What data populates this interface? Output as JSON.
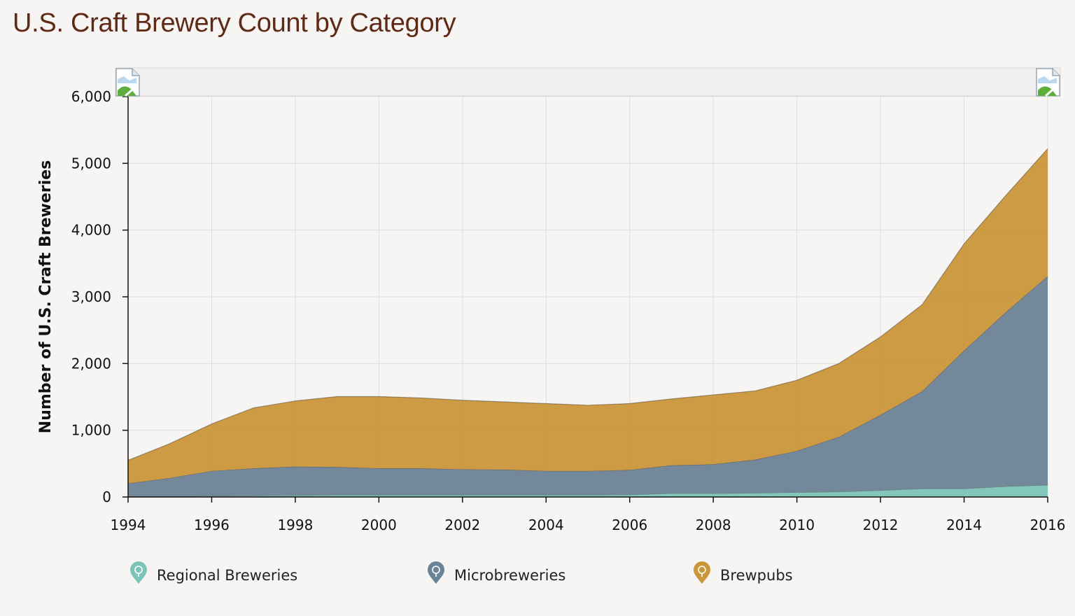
{
  "page_title": "U.S. Craft Brewery Count by Category",
  "chart_data": {
    "type": "area",
    "stacked": true,
    "title": "U.S. Craft Brewery Count by Category",
    "xlabel": "",
    "ylabel": "Number of U.S. Craft Breweries",
    "x": [
      1994,
      1995,
      1996,
      1997,
      1998,
      1999,
      2000,
      2001,
      2002,
      2003,
      2004,
      2005,
      2006,
      2007,
      2008,
      2009,
      2010,
      2011,
      2012,
      2013,
      2014,
      2015,
      2016
    ],
    "xlim": [
      1994,
      2016
    ],
    "ylim": [
      0,
      6000
    ],
    "x_ticks": [
      "1994",
      "1996",
      "1998",
      "2000",
      "2002",
      "2004",
      "2006",
      "2008",
      "2010",
      "2012",
      "2014",
      "2016"
    ],
    "y_ticks": [
      "0",
      "1,000",
      "2,000",
      "3,000",
      "4,000",
      "5,000",
      "6,000"
    ],
    "grid": true,
    "legend_position": "bottom",
    "series": [
      {
        "name": "Regional Breweries",
        "color": "#7cc4b8",
        "values": [
          10,
          10,
          15,
          20,
          25,
          30,
          30,
          30,
          30,
          30,
          30,
          30,
          35,
          55,
          55,
          60,
          70,
          80,
          100,
          125,
          125,
          160,
          180
        ]
      },
      {
        "name": "Microbreweries",
        "color": "#6b8396",
        "values": [
          195,
          275,
          375,
          410,
          430,
          420,
          400,
          400,
          385,
          380,
          360,
          360,
          370,
          420,
          435,
          500,
          620,
          820,
          1130,
          1460,
          2070,
          2610,
          3130
        ]
      },
      {
        "name": "Brewpubs",
        "color": "#ca963a",
        "values": [
          345,
          515,
          705,
          905,
          985,
          1055,
          1075,
          1055,
          1035,
          1015,
          1010,
          985,
          995,
          995,
          1040,
          1030,
          1060,
          1100,
          1170,
          1300,
          1600,
          1750,
          1910
        ]
      }
    ]
  },
  "legend": {
    "icons": [
      "regional-brewery-marker-icon",
      "microbrewery-marker-icon",
      "brewpub-marker-icon"
    ]
  },
  "navigator": {
    "left_handle_icon": "broken-image-icon",
    "right_handle_icon": "broken-image-icon"
  }
}
